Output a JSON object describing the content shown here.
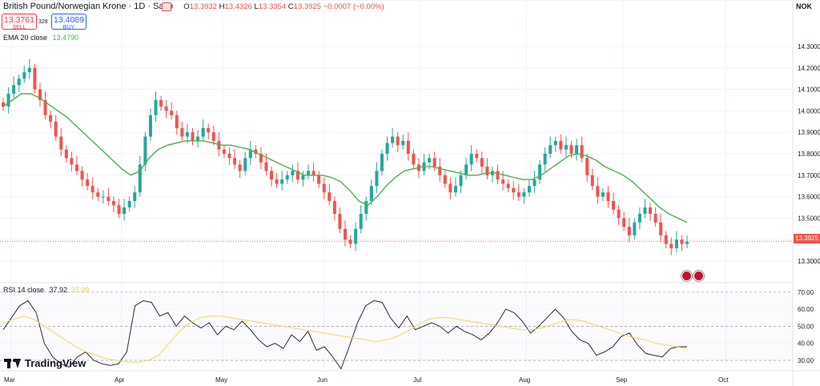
{
  "header": {
    "title": "British Pound/Norwegian Krone · 1D · Saxo",
    "ohlc": {
      "o_label": "O",
      "o": "13.3932",
      "h_label": "H",
      "h": "13.4326",
      "l_label": "L",
      "l": "13.3354",
      "c_label": "C",
      "c": "13.3925",
      "change": "−0.0007 (−0.00%)"
    },
    "currency": "NOK"
  },
  "trade": {
    "sell_price": "13.3761",
    "sell_label": "SELL",
    "spread": "328",
    "buy_price": "13.4089",
    "buy_label": "BUY"
  },
  "ema_legend": {
    "label": "EMA 20 close",
    "value": "13.4790"
  },
  "rsi_legend": {
    "label": "RSI 14 close",
    "value": "37.92",
    "value2": "37.09"
  },
  "price_tag": "13.3925",
  "branding": "TradingView",
  "colors": {
    "up": "#26a69a",
    "down": "#ef5350",
    "ema": "#4caf50",
    "rsi": "#2a2e39",
    "rsi_ma": "#f2d75c",
    "sell": "#f23645",
    "buy": "#2962ff"
  },
  "chart_data": [
    {
      "type": "candlestick",
      "title": "British Pound/Norwegian Krone · 1D · Saxo",
      "x_tick_labels": [
        "Mar",
        "Apr",
        "May",
        "Jun",
        "Jul",
        "Aug",
        "Sep",
        "Oct"
      ],
      "y_ticks": [
        13.3,
        13.4,
        13.5,
        13.6,
        13.7,
        13.8,
        13.9,
        14.0,
        14.1,
        14.2,
        14.3
      ],
      "y_tick_labels": [
        "13.3000",
        "13.4000",
        "13.5000",
        "13.6000",
        "13.7000",
        "13.8000",
        "13.9000",
        "14.0000",
        "14.1000",
        "14.2000",
        "14.3000"
      ],
      "ylim": [
        13.2,
        14.35
      ],
      "closes": [
        14.02,
        14.08,
        14.12,
        14.15,
        14.18,
        14.2,
        14.1,
        14.05,
        13.98,
        13.95,
        13.88,
        13.82,
        13.78,
        13.75,
        13.72,
        13.68,
        13.65,
        13.62,
        13.6,
        13.6,
        13.58,
        13.56,
        13.52,
        13.55,
        13.58,
        13.62,
        13.75,
        13.88,
        13.98,
        14.05,
        14.02,
        14.0,
        13.98,
        13.92,
        13.88,
        13.9,
        13.86,
        13.88,
        13.92,
        13.9,
        13.86,
        13.82,
        13.8,
        13.78,
        13.75,
        13.72,
        13.78,
        13.82,
        13.8,
        13.76,
        13.72,
        13.68,
        13.66,
        13.68,
        13.7,
        13.72,
        13.68,
        13.7,
        13.72,
        13.7,
        13.66,
        13.62,
        13.58,
        13.52,
        13.45,
        13.4,
        13.38,
        13.45,
        13.52,
        13.58,
        13.65,
        13.72,
        13.8,
        13.85,
        13.88,
        13.84,
        13.86,
        13.8,
        13.75,
        13.72,
        13.76,
        13.78,
        13.74,
        13.7,
        13.66,
        13.62,
        13.65,
        13.7,
        13.75,
        13.8,
        13.78,
        13.74,
        13.7,
        13.72,
        13.68,
        13.66,
        13.64,
        13.62,
        13.6,
        13.62,
        13.65,
        13.68,
        13.75,
        13.8,
        13.84,
        13.86,
        13.82,
        13.84,
        13.8,
        13.84,
        13.78,
        13.7,
        13.65,
        13.6,
        13.62,
        13.58,
        13.54,
        13.5,
        13.46,
        13.42,
        13.48,
        13.52,
        13.55,
        13.52,
        13.48,
        13.42,
        13.38,
        13.36,
        13.4,
        13.38,
        13.39
      ],
      "ema20": [
        14.02,
        14.05,
        14.08,
        14.08,
        14.06,
        14.03,
        14.0,
        13.97,
        13.93,
        13.89,
        13.85,
        13.81,
        13.77,
        13.73,
        13.7,
        13.72,
        13.78,
        13.82,
        13.84,
        13.85,
        13.86,
        13.86,
        13.86,
        13.85,
        13.84,
        13.84,
        13.83,
        13.82,
        13.8,
        13.78,
        13.76,
        13.74,
        13.72,
        13.7,
        13.7,
        13.7,
        13.69,
        13.67,
        13.63,
        13.58,
        13.56,
        13.6,
        13.65,
        13.69,
        13.72,
        13.73,
        13.74,
        13.74,
        13.73,
        13.72,
        13.71,
        13.7,
        13.7,
        13.71,
        13.71,
        13.7,
        13.69,
        13.68,
        13.68,
        13.7,
        13.73,
        13.76,
        13.79,
        13.8,
        13.79,
        13.77,
        13.74,
        13.72,
        13.7,
        13.67,
        13.63,
        13.59,
        13.55,
        13.52,
        13.5,
        13.48
      ],
      "rsi14": [
        48,
        55,
        62,
        65,
        58,
        40,
        32,
        28,
        26,
        32,
        35,
        30,
        28,
        27,
        28,
        35,
        62,
        65,
        64,
        56,
        58,
        50,
        56,
        52,
        49,
        52,
        45,
        50,
        48,
        53,
        48,
        42,
        38,
        40,
        37,
        45,
        41,
        47,
        36,
        38,
        32,
        25,
        38,
        52,
        62,
        65,
        64,
        55,
        49,
        56,
        48,
        50,
        52,
        50,
        46,
        50,
        47,
        45,
        42,
        46,
        52,
        60,
        58,
        53,
        46,
        50,
        55,
        60,
        55,
        47,
        42,
        40,
        33,
        35,
        38,
        44,
        46,
        39,
        34,
        33,
        32,
        37,
        38,
        38
      ],
      "rsi_ma": [
        52,
        54,
        56,
        54,
        50,
        46,
        42,
        38,
        35,
        33,
        31,
        30,
        29,
        29,
        30,
        33,
        40,
        47,
        52,
        55,
        56,
        56,
        55,
        54,
        53,
        52,
        51,
        50,
        49,
        48,
        47,
        46,
        45,
        44,
        43,
        42,
        41,
        42,
        44,
        47,
        51,
        54,
        55,
        55,
        54,
        53,
        52,
        51,
        50,
        49,
        48,
        48,
        49,
        51,
        53,
        54,
        53,
        51,
        49,
        47,
        45,
        43,
        42,
        40,
        39,
        38,
        37
      ],
      "rsi_ylim": [
        20,
        75
      ],
      "rsi_ticks": [
        30,
        40,
        50,
        60,
        70
      ],
      "rsi_tick_labels": [
        "30.00",
        "40.00",
        "50.00",
        "60.00",
        "70.00"
      ]
    }
  ]
}
